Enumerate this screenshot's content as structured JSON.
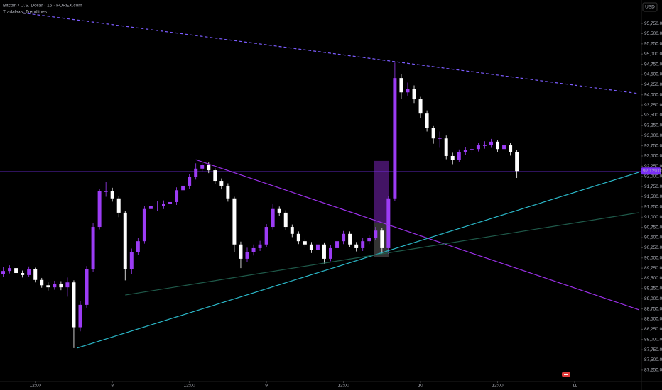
{
  "chart_data": {
    "type": "candlestick",
    "title": "Bitcoin / U.S. Dollar · 15 · FOREX.com",
    "indicator": "Tradalaxs_Trendlines",
    "currency": "USD",
    "up_color": "#9c3cf5",
    "down_color": "#ffffff",
    "grid": false,
    "x": [
      -17,
      -16,
      -15,
      -14,
      -13,
      -12,
      -11,
      -10,
      -9,
      -8,
      -7,
      -6,
      -5,
      -4,
      -3,
      -2,
      -1,
      0,
      1,
      2,
      3,
      4,
      5,
      6,
      7,
      8,
      9,
      10,
      11,
      12,
      13,
      14,
      15,
      16,
      17,
      18,
      19,
      20,
      21,
      22,
      23,
      24,
      25,
      26,
      27,
      28,
      29,
      30,
      31,
      32,
      33,
      34,
      35,
      36,
      37,
      38,
      39,
      40,
      41,
      42,
      43,
      44,
      45,
      46,
      47,
      48,
      49,
      50,
      51,
      52,
      53,
      54,
      55,
      56,
      57,
      58,
      59,
      60,
      61,
      62,
      63
    ],
    "open": [
      89600,
      89680,
      89750,
      89630,
      89580,
      89720,
      89460,
      89330,
      89280,
      89370,
      89280,
      89400,
      88300,
      88850,
      89720,
      90760,
      91630,
      91630,
      91460,
      91110,
      89720,
      90150,
      90410,
      91200,
      91280,
      91280,
      91320,
      91370,
      91660,
      91770,
      91980,
      92190,
      92290,
      92150,
      91890,
      91770,
      91460,
      90330,
      89980,
      90150,
      90240,
      90330,
      90760,
      91200,
      91110,
      90760,
      90590,
      90410,
      90330,
      90200,
      90330,
      89980,
      90240,
      90410,
      90590,
      90330,
      90240,
      90410,
      90500,
      90670,
      90240,
      91460,
      94410,
      94060,
      94150,
      93890,
      93540,
      93190,
      92930,
      92930,
      92500,
      92410,
      92590,
      92640,
      92670,
      92760,
      92760,
      92850,
      92670,
      92760,
      92590
    ],
    "high": [
      89780,
      89820,
      89800,
      89690,
      89790,
      89760,
      89510,
      89400,
      89440,
      89430,
      89520,
      89450,
      88950,
      89800,
      90850,
      91700,
      91860,
      91720,
      91520,
      91150,
      90230,
      90500,
      91280,
      91380,
      91400,
      91410,
      91460,
      91730,
      91850,
      92060,
      92320,
      92330,
      92340,
      92200,
      91950,
      91830,
      91500,
      90400,
      90250,
      90330,
      90420,
      90830,
      91330,
      91260,
      91170,
      90820,
      90650,
      90470,
      90390,
      90410,
      90380,
      90310,
      90480,
      90660,
      90650,
      90390,
      90490,
      90570,
      90760,
      90730,
      91520,
      94790,
      94500,
      94300,
      94230,
      93950,
      93620,
      93250,
      93100,
      93000,
      92580,
      92660,
      92720,
      92750,
      92830,
      92860,
      92920,
      92900,
      93020,
      92830,
      92640
    ],
    "low": [
      89540,
      89620,
      89580,
      89520,
      89540,
      89400,
      89270,
      89200,
      89220,
      89210,
      89050,
      87790,
      88200,
      88780,
      89650,
      90700,
      91500,
      91380,
      91000,
      89450,
      89600,
      90080,
      90350,
      91100,
      91150,
      91200,
      91240,
      91300,
      91590,
      91700,
      91920,
      92120,
      92080,
      91820,
      91680,
      91380,
      90150,
      89750,
      89900,
      90060,
      90170,
      90270,
      90700,
      91030,
      90690,
      90510,
      90340,
      90250,
      90120,
      90130,
      89850,
      89920,
      90170,
      90340,
      90260,
      90160,
      90170,
      90340,
      90430,
      90100,
      90100,
      91400,
      93900,
      93980,
      93800,
      93430,
      93100,
      92800,
      92700,
      92420,
      92300,
      92350,
      92530,
      92570,
      92610,
      92680,
      92700,
      92590,
      92600,
      92510,
      91960
    ],
    "close": [
      89680,
      89750,
      89630,
      89580,
      89720,
      89460,
      89330,
      89280,
      89370,
      89280,
      89400,
      88300,
      88850,
      89720,
      90760,
      91630,
      91630,
      91460,
      91110,
      89720,
      90150,
      90410,
      91200,
      91280,
      91280,
      91320,
      91370,
      91660,
      91770,
      91980,
      92190,
      92290,
      92150,
      91890,
      91770,
      91460,
      90330,
      89980,
      90150,
      90240,
      90330,
      90760,
      91200,
      91110,
      90760,
      90590,
      90410,
      90330,
      90200,
      90330,
      89980,
      90240,
      90410,
      90590,
      90330,
      90240,
      90410,
      90500,
      90670,
      90240,
      91460,
      94410,
      94060,
      94150,
      93890,
      93540,
      93190,
      92930,
      92930,
      92500,
      92410,
      92590,
      92640,
      92670,
      92760,
      92760,
      92850,
      92670,
      92760,
      92590,
      92129
    ],
    "xlim": [
      -17.5,
      82.4
    ],
    "xticks": [
      {
        "value": -12,
        "label": "12:00"
      },
      {
        "value": 0,
        "label": "8"
      },
      {
        "value": 12,
        "label": "12:00"
      },
      {
        "value": 24,
        "label": "9"
      },
      {
        "value": 36,
        "label": "12:00"
      },
      {
        "value": 48,
        "label": "10"
      },
      {
        "value": 60,
        "label": "12:00"
      },
      {
        "value": 72,
        "label": "11"
      }
    ],
    "ylim": [
      86970,
      96325
    ],
    "yticks": [
      {
        "value": 87250,
        "label": "87,250.00"
      },
      {
        "value": 87500,
        "label": "87,500.00"
      },
      {
        "value": 87750,
        "label": "87,750.00"
      },
      {
        "value": 88000,
        "label": "88,000.00"
      },
      {
        "value": 88250,
        "label": "88,250.00"
      },
      {
        "value": 88500,
        "label": "88,500.00"
      },
      {
        "value": 88750,
        "label": "88,750.00"
      },
      {
        "value": 89000,
        "label": "89,000.00"
      },
      {
        "value": 89250,
        "label": "89,250.00"
      },
      {
        "value": 89500,
        "label": "89,500.00"
      },
      {
        "value": 89750,
        "label": "89,750.00"
      },
      {
        "value": 90000,
        "label": "90,000.00"
      },
      {
        "value": 90250,
        "label": "90,250.00"
      },
      {
        "value": 90500,
        "label": "90,500.00"
      },
      {
        "value": 90750,
        "label": "90,750.00"
      },
      {
        "value": 91000,
        "label": "91,000.00"
      },
      {
        "value": 91250,
        "label": "91,250.00"
      },
      {
        "value": 91500,
        "label": "91,500.00"
      },
      {
        "value": 91750,
        "label": "91,750.00"
      },
      {
        "value": 92000,
        "label": "92,000.00"
      },
      {
        "value": 92250,
        "label": "92,250.00"
      },
      {
        "value": 92500,
        "label": "92,500.00"
      },
      {
        "value": 92750,
        "label": "92,750.00"
      },
      {
        "value": 93000,
        "label": "93,000.00"
      },
      {
        "value": 93250,
        "label": "93,250.00"
      },
      {
        "value": 93500,
        "label": "93,500.00"
      },
      {
        "value": 93750,
        "label": "93,750.00"
      },
      {
        "value": 94000,
        "label": "94,000.00"
      },
      {
        "value": 94250,
        "label": "94,250.00"
      },
      {
        "value": 94500,
        "label": "94,500.00"
      },
      {
        "value": 94750,
        "label": "94,750.00"
      },
      {
        "value": 95000,
        "label": "95,000.00"
      },
      {
        "value": 95250,
        "label": "95,250.00"
      },
      {
        "value": 95500,
        "label": "95,500.00"
      },
      {
        "value": 95750,
        "label": "95,750.00"
      }
    ],
    "last_price": {
      "value": 92129,
      "label": "92,129.00"
    },
    "last_price_color": "#7b2ff7",
    "trendlines": [
      {
        "x": [
          -14,
          82
        ],
        "y": [
          96010,
          94030
        ],
        "color": "#7c5cff",
        "dashed": true
      },
      {
        "x": [
          13,
          82
        ],
        "y": [
          92410,
          88730
        ],
        "color": "#9b30e8",
        "dashed": false
      },
      {
        "x": [
          -5.5,
          82
        ],
        "y": [
          87790,
          92100
        ],
        "color": "#2bb8c8",
        "dashed": false
      },
      {
        "x": [
          2,
          82
        ],
        "y": [
          89090,
          91110
        ],
        "color": "#1f5a4a",
        "dashed": false
      }
    ],
    "boxes": [
      {
        "x": [
          40.8,
          43.1
        ],
        "y": [
          90850,
          92380
        ],
        "color": "#4a1670"
      },
      {
        "x": [
          40.8,
          43.1
        ],
        "y": [
          90030,
          90850
        ],
        "color": "#3a3a3a"
      }
    ]
  }
}
